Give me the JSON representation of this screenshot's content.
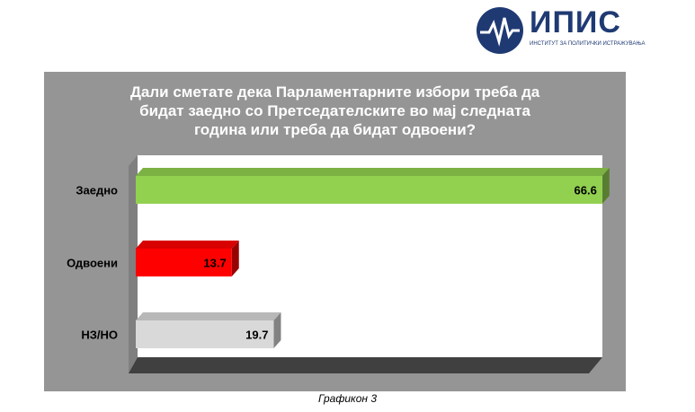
{
  "logo": {
    "name": "ИПИС",
    "subtitle": "ИНСТИТУТ ЗА ПОЛИТИЧКИ ИСТРАЖУВАЊА",
    "color": "#1f3a73"
  },
  "caption": "Графикон 3",
  "chart_data": {
    "type": "bar",
    "orientation": "horizontal",
    "title": "Дали сметате дека Парламентарните избори треба да бидат заедно со Претседателските во мај следната година или треба да бидат одвоени?",
    "title_lines": [
      "Дали сметате дека Парламентарните избори треба да",
      "бидат заедно со Претседателските во мај следната",
      "година или треба да бидат одвоени?"
    ],
    "categories": [
      "Заедно",
      "Одвоени",
      "НЗ/НО"
    ],
    "values": [
      66.6,
      13.7,
      19.7
    ],
    "colors": [
      "#92d050",
      "#ff0000",
      "#d9d9d9"
    ],
    "xlim": [
      0,
      100
    ],
    "grid": false,
    "legend": "none"
  }
}
